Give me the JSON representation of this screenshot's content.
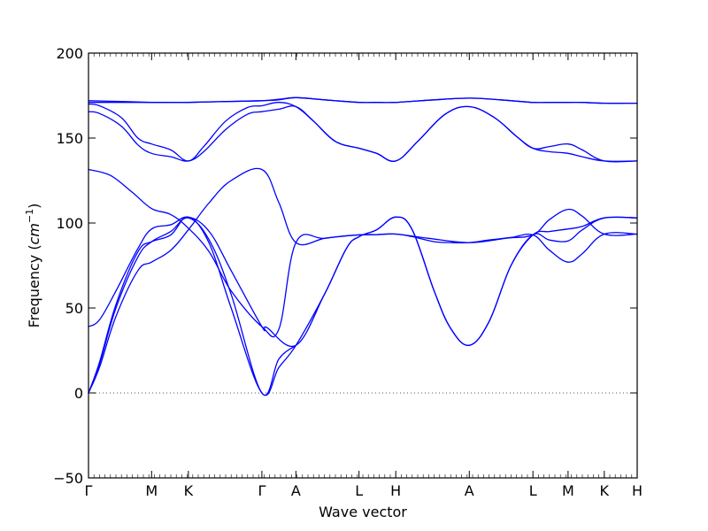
{
  "chart_data": {
    "type": "line",
    "title": "",
    "xlabel": "Wave vector",
    "ylabel": "Frequency",
    "ylabel_unit": "cm",
    "ylabel_unit_exp": "−1",
    "ylim": [
      -50,
      200
    ],
    "yticks": [
      -50,
      0,
      50,
      100,
      150,
      200
    ],
    "ytick_labels": [
      "−50",
      "0",
      "50",
      "100",
      "150",
      "200"
    ],
    "xlim": [
      0,
      1
    ],
    "xticks": [
      {
        "x": 0.0,
        "label": "Γ"
      },
      {
        "x": 0.115,
        "label": "M"
      },
      {
        "x": 0.182,
        "label": "K"
      },
      {
        "x": 0.316,
        "label": "Γ"
      },
      {
        "x": 0.378,
        "label": "A"
      },
      {
        "x": 0.493,
        "label": "L"
      },
      {
        "x": 0.56,
        "label": "H"
      },
      {
        "x": 0.694,
        "label": "A"
      },
      {
        "x": 0.81,
        "label": "L"
      },
      {
        "x": 0.874,
        "label": "M"
      },
      {
        "x": 0.94,
        "label": "K"
      },
      {
        "x": 1.0,
        "label": "H"
      }
    ],
    "zero_line": true,
    "series": [
      {
        "x": [
          0,
          0.06,
          0.115,
          0.15,
          0.182,
          0.25,
          0.316,
          0.347,
          0.378,
          0.43,
          0.493,
          0.525,
          0.56,
          0.63,
          0.694,
          0.75,
          0.81,
          0.84,
          0.874,
          0.9,
          0.94,
          1.0
        ],
        "y": [
          172,
          171.5,
          171,
          171,
          171,
          171.5,
          172,
          172.5,
          173.8,
          172.5,
          171,
          171,
          171,
          172.5,
          173.5,
          172.5,
          171,
          171,
          171,
          171,
          170.5,
          170.5
        ]
      },
      {
        "x": [
          0,
          0.06,
          0.115,
          0.15,
          0.182,
          0.25,
          0.316,
          0.347,
          0.378,
          0.43,
          0.493,
          0.525,
          0.56,
          0.63,
          0.694,
          0.75,
          0.81,
          0.84,
          0.874,
          0.9,
          0.94,
          1.0
        ],
        "y": [
          171,
          171,
          171,
          171,
          171,
          171.5,
          172,
          172.8,
          173.8,
          172.5,
          171,
          171,
          171,
          172.5,
          173.5,
          172.5,
          171,
          171,
          171,
          171,
          170.5,
          170.5
        ]
      },
      {
        "x": [
          0,
          0.02,
          0.06,
          0.09,
          0.115,
          0.15,
          0.182,
          0.21,
          0.25,
          0.29,
          0.316,
          0.347,
          0.378,
          0.41,
          0.45,
          0.493,
          0.525,
          0.56,
          0.6,
          0.65,
          0.694,
          0.74,
          0.78,
          0.81,
          0.84,
          0.874,
          0.9,
          0.94,
          1.0
        ],
        "y": [
          170,
          169,
          162,
          150,
          146.5,
          143,
          136.5,
          145,
          160,
          168,
          169,
          171,
          168.5,
          160,
          148,
          144,
          141,
          136.5,
          148,
          164,
          168.5,
          162,
          151,
          144,
          145,
          146.5,
          143,
          136.5,
          136.5
        ]
      },
      {
        "x": [
          0,
          0.02,
          0.06,
          0.09,
          0.115,
          0.15,
          0.182,
          0.21,
          0.25,
          0.29,
          0.316,
          0.347,
          0.378,
          0.41,
          0.45,
          0.493,
          0.525,
          0.56,
          0.6,
          0.65,
          0.694,
          0.74,
          0.78,
          0.81,
          0.84,
          0.874,
          0.9,
          0.94,
          1.0
        ],
        "y": [
          165.5,
          164.5,
          157,
          146,
          141,
          139,
          136.5,
          142,
          155,
          164,
          165.5,
          167,
          168.5,
          160,
          148,
          144,
          141,
          136.5,
          148,
          164,
          168.5,
          162,
          151,
          144,
          142,
          141,
          139,
          136.5,
          136.5
        ]
      },
      {
        "x": [
          0,
          0.04,
          0.08,
          0.115,
          0.15,
          0.182,
          0.22,
          0.26,
          0.316,
          0.347,
          0.378,
          0.43,
          0.493,
          0.525,
          0.56,
          0.62,
          0.694,
          0.76,
          0.81,
          0.84,
          0.874,
          0.9,
          0.94,
          1.0
        ],
        "y": [
          131.5,
          128,
          118,
          108.5,
          105,
          97,
          83,
          60,
          39,
          37.5,
          88.5,
          91,
          93,
          93.2,
          93.5,
          91,
          88.5,
          91,
          93,
          102,
          108,
          104,
          93.5,
          93.5
        ]
      },
      {
        "x": [
          0,
          0.02,
          0.05,
          0.09,
          0.115,
          0.15,
          0.182,
          0.22,
          0.26,
          0.316,
          0.325,
          0.378,
          0.43,
          0.47,
          0.493,
          0.525,
          0.56,
          0.59,
          0.63,
          0.66,
          0.694,
          0.73,
          0.77,
          0.81,
          0.84,
          0.874,
          0.9,
          0.94,
          1.0
        ],
        "y": [
          39,
          43,
          60,
          85,
          96.5,
          99,
          103.5,
          95,
          72,
          39,
          38.5,
          28,
          58,
          85,
          92,
          96,
          103.5,
          96,
          60,
          38,
          28,
          42,
          75,
          93,
          90,
          89.5,
          96,
          103,
          103
        ]
      },
      {
        "x": [
          0,
          0.02,
          0.05,
          0.09,
          0.115,
          0.15,
          0.182,
          0.22,
          0.26,
          0.316,
          0.347,
          0.378,
          0.43,
          0.47,
          0.493,
          0.525,
          0.56,
          0.59,
          0.63,
          0.66,
          0.694,
          0.73,
          0.77,
          0.81,
          0.84,
          0.874,
          0.9,
          0.94,
          1.0
        ],
        "y": [
          0,
          18,
          52,
          83,
          89,
          93,
          103.5,
          88,
          50,
          0,
          15,
          28,
          58,
          85,
          92,
          96,
          103.5,
          96,
          60,
          38,
          28,
          42,
          75,
          93,
          95,
          96.5,
          98,
          103,
          103
        ]
      },
      {
        "x": [
          0,
          0.02,
          0.05,
          0.09,
          0.115,
          0.15,
          0.182,
          0.22,
          0.26,
          0.316,
          0.347,
          0.378,
          0.43,
          0.47,
          0.493,
          0.525,
          0.56,
          0.59,
          0.63,
          0.66,
          0.694,
          0.73,
          0.77,
          0.81,
          0.84,
          0.874,
          0.9,
          0.94,
          1.0
        ],
        "y": [
          0,
          15,
          45,
          72,
          77,
          84,
          96,
          112,
          125,
          131.5,
          112,
          88.5,
          91,
          92.5,
          93,
          93.2,
          93.5,
          92,
          89,
          88.5,
          88.5,
          90,
          91.5,
          93,
          84,
          77,
          82,
          93.5,
          93.5
        ]
      },
      {
        "x": [
          0,
          0.02,
          0.05,
          0.09,
          0.115,
          0.15,
          0.182,
          0.22,
          0.26,
          0.316,
          0.347,
          0.378
        ],
        "y": [
          0,
          17,
          50,
          80,
          89,
          95,
          103,
          90,
          58,
          0,
          20,
          28
        ]
      }
    ]
  }
}
